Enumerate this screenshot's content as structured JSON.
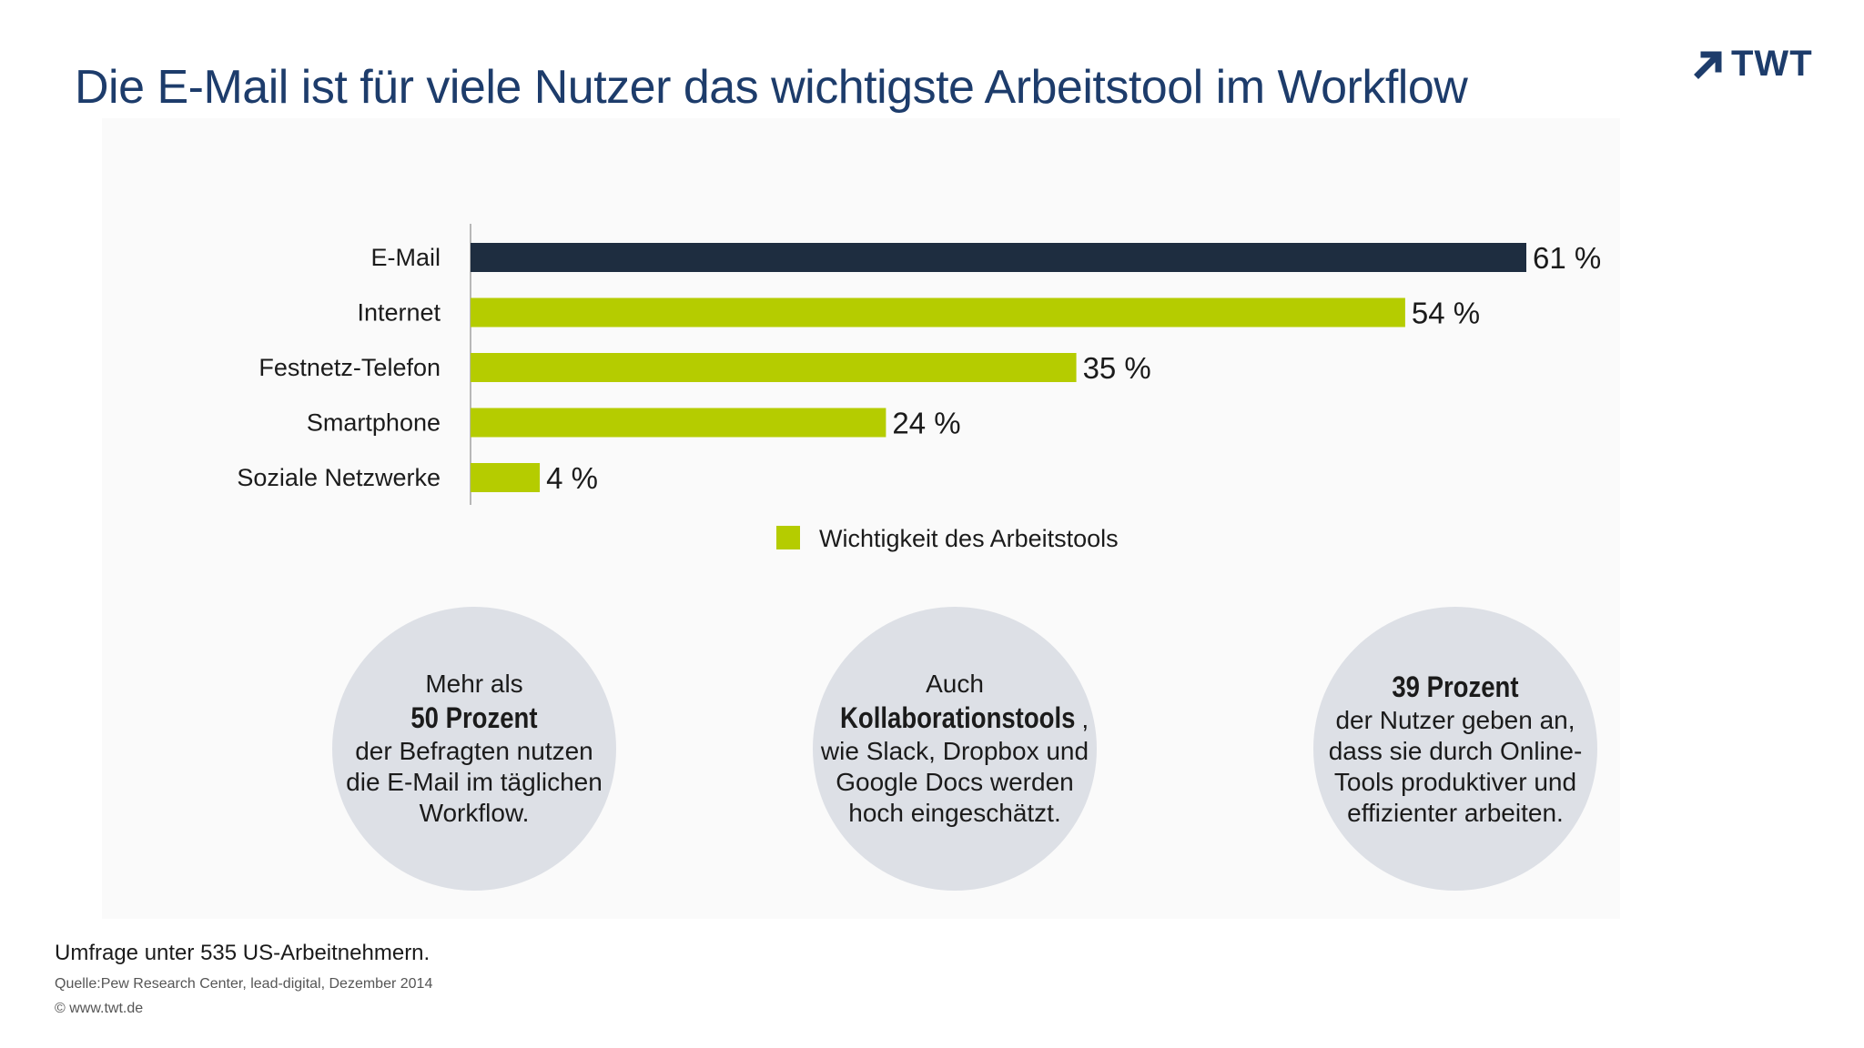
{
  "title": "Die E-Mail ist für viele Nutzer das wichtigste Arbeitstool im Workflow",
  "logo": {
    "text": "TWT",
    "icon": "arrow-up-right-icon",
    "color": "#1d3c6b"
  },
  "colors": {
    "highlight": "#1e2d40",
    "series": "#b5cc00",
    "circle": "#dde0e6",
    "title": "#1d3c6b"
  },
  "chart_data": {
    "type": "bar",
    "orientation": "horizontal",
    "categories": [
      "E-Mail",
      "Internet",
      "Festnetz-Telefon",
      "Smartphone",
      "Soziale Netzwerke"
    ],
    "values": [
      61,
      54,
      35,
      24,
      4
    ],
    "value_labels": [
      "61 %",
      "54 %",
      "35 %",
      "24 %",
      "4 %"
    ],
    "highlight_index": 0,
    "xlim": [
      0,
      61
    ],
    "legend": {
      "label": "Wichtigkeit des Arbeitstools",
      "position": "bottom"
    },
    "grid": false
  },
  "circles": [
    {
      "before": [
        "Mehr als"
      ],
      "strong": "50 Prozent",
      "strong_suffix": "",
      "after": [
        "der Befragten nutzen",
        "die E-Mail im täglichen",
        "Workflow."
      ]
    },
    {
      "before": [
        "Auch"
      ],
      "strong": "Kollaborationstools",
      "strong_suffix": ",",
      "after": [
        "wie Slack, Dropbox und",
        "Google Docs werden",
        "hoch eingeschätzt."
      ]
    },
    {
      "before": [],
      "strong": "39 Prozent",
      "strong_suffix": "",
      "after": [
        "der Nutzer geben an,",
        "dass sie durch Online-",
        "Tools produktiver und",
        "effizienter arbeiten."
      ]
    }
  ],
  "footer": {
    "note": "Umfrage unter 535 US-Arbeitnehmern.",
    "source": "Quelle:Pew Research Center, lead-digital, Dezember 2014",
    "copyright": "©  www.twt.de"
  }
}
